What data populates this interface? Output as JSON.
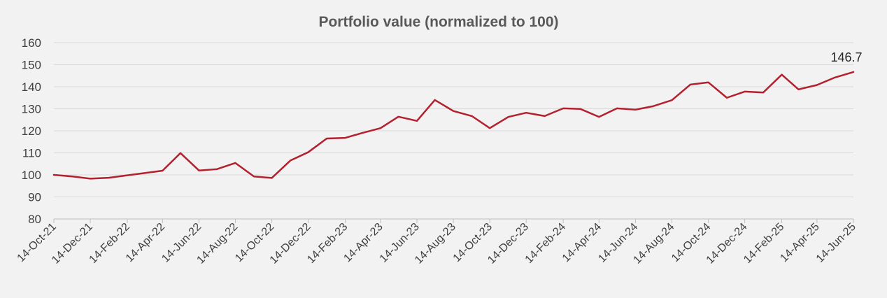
{
  "chart_data": {
    "type": "line",
    "title": "Portfolio value (normalized to 100)",
    "xlabel": "",
    "ylabel": "",
    "ylim": [
      80,
      160
    ],
    "yticks": [
      80,
      90,
      100,
      110,
      120,
      130,
      140,
      150,
      160
    ],
    "grid": true,
    "legend": "none",
    "xticks": [
      "14-Oct-21",
      "14-Dec-21",
      "14-Feb-22",
      "14-Apr-22",
      "14-Jun-22",
      "14-Aug-22",
      "14-Oct-22",
      "14-Dec-22",
      "14-Feb-23",
      "14-Apr-23",
      "14-Jun-23",
      "14-Aug-23",
      "14-Oct-23",
      "14-Dec-23",
      "14-Feb-24",
      "14-Apr-24",
      "14-Jun-24",
      "14-Aug-24",
      "14-Oct-24",
      "14-Dec-24",
      "14-Feb-25",
      "14-Apr-25",
      "14-Jun-25"
    ],
    "series": [
      {
        "color": "#b3202e",
        "x": [
          "2021-10-14",
          "2021-11-14",
          "2021-12-14",
          "2022-01-14",
          "2022-02-14",
          "2022-03-14",
          "2022-04-14",
          "2022-05-14",
          "2022-06-14",
          "2022-07-14",
          "2022-08-14",
          "2022-09-14",
          "2022-10-14",
          "2022-11-14",
          "2022-12-14",
          "2023-01-14",
          "2023-02-14",
          "2023-03-14",
          "2023-04-14",
          "2023-05-14",
          "2023-06-14",
          "2023-07-14",
          "2023-08-14",
          "2023-09-14",
          "2023-10-14",
          "2023-11-14",
          "2023-12-14",
          "2024-01-14",
          "2024-02-14",
          "2024-03-14",
          "2024-04-14",
          "2024-05-14",
          "2024-06-14",
          "2024-07-14",
          "2024-08-14",
          "2024-09-14",
          "2024-10-14",
          "2024-11-14",
          "2024-12-14",
          "2025-01-14",
          "2025-02-14",
          "2025-03-14",
          "2025-04-14",
          "2025-05-14",
          "2025-06-14"
        ],
        "values": [
          100,
          99.3,
          98.3,
          98.7,
          99.8,
          100.8,
          101.9,
          109.9,
          102.0,
          102.6,
          105.4,
          99.3,
          98.6,
          106.5,
          110.3,
          116.5,
          116.8,
          119.0,
          121.2,
          126.4,
          124.5,
          134.0,
          129.0,
          126.7,
          121.2,
          126.3,
          128.2,
          126.7,
          130.2,
          129.9,
          126.3,
          130.2,
          129.6,
          131.2,
          133.9,
          141.0,
          142.0,
          135.0,
          137.8,
          137.4,
          145.5,
          138.8,
          140.8,
          144.2,
          146.7
        ]
      }
    ],
    "end_label": "146.7"
  }
}
